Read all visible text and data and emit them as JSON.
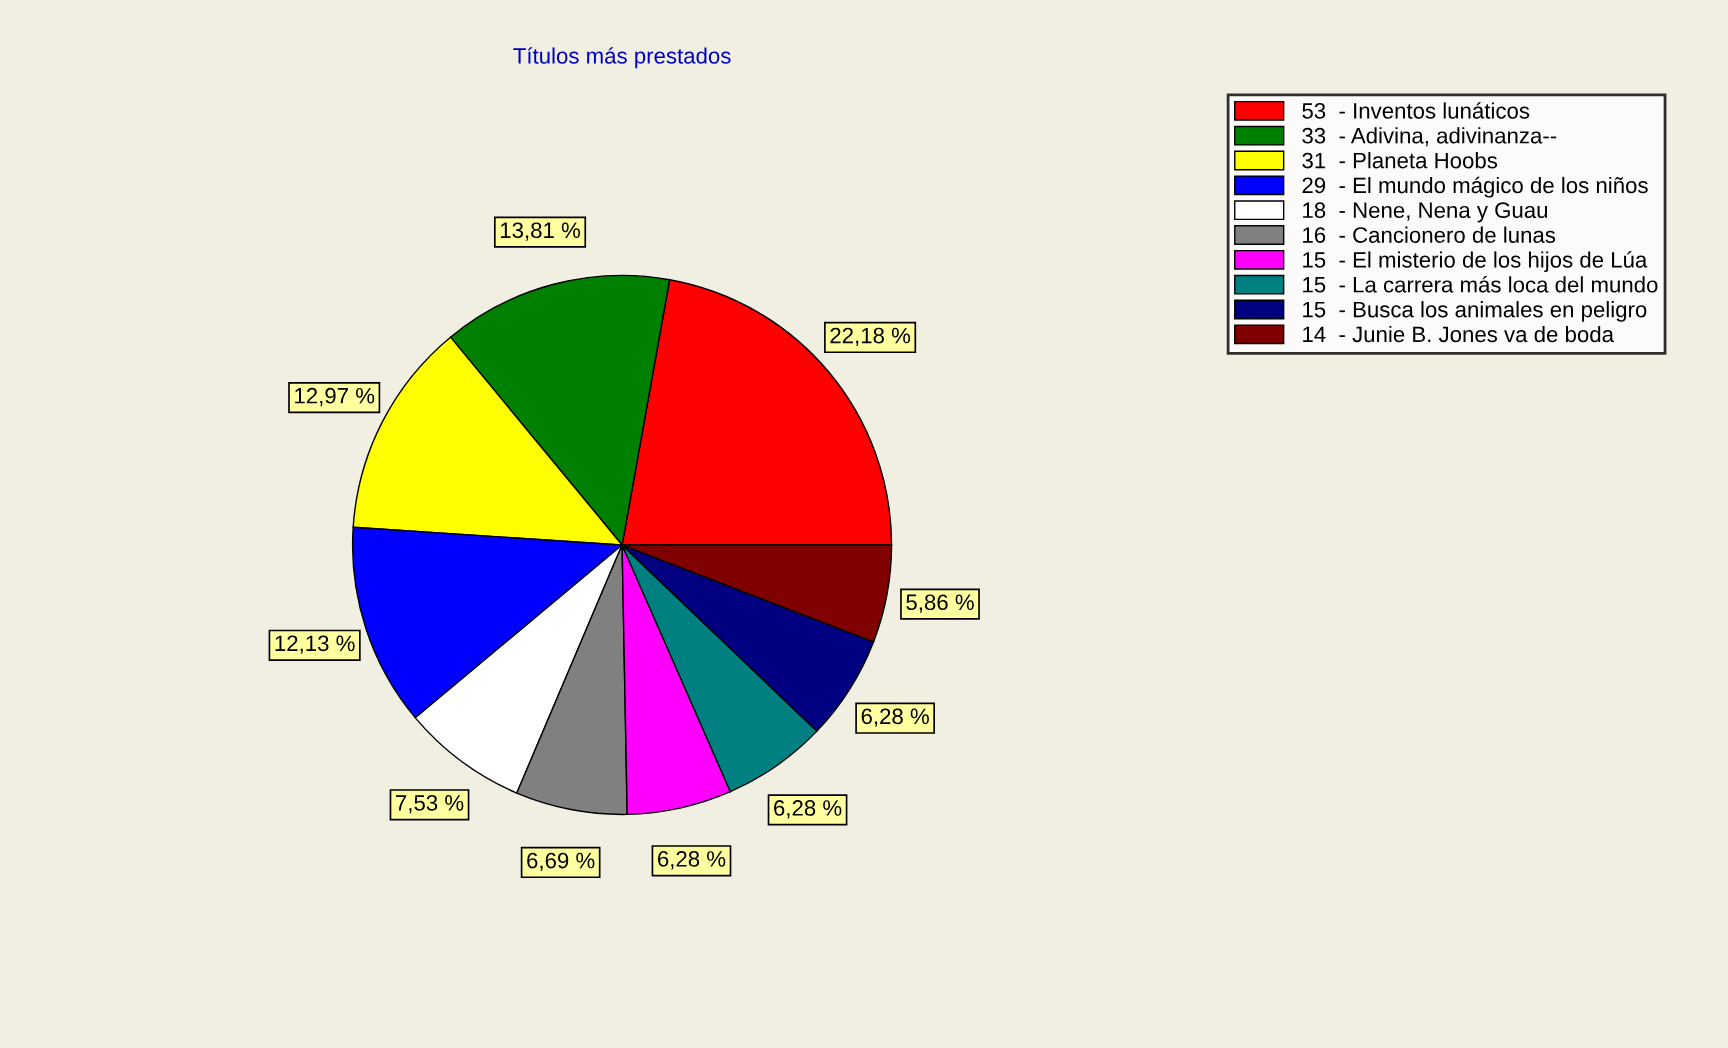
{
  "chart_data": {
    "type": "pie",
    "title": "Títulos más prestados",
    "categories": [
      "53  - Inventos lunáticos",
      "33  - Adivina, adivinanza--",
      "31  - Planeta Hoobs",
      "29  - El mundo mágico de los niños",
      "18  - Nene, Nena y Guau",
      "16  - Cancionero de lunas",
      "15  - El misterio de los hijos de Lúa",
      "15  - La carrera más loca del mundo",
      "15  - Busca los animales en peligro",
      "14  - Junie B. Jones va de boda"
    ],
    "values": [
      22.18,
      13.81,
      12.97,
      12.13,
      7.53,
      6.69,
      6.28,
      6.28,
      6.28,
      5.86
    ],
    "value_labels": [
      "22,18 %",
      "13,81 %",
      "12,97 %",
      "12,13 %",
      "7,53 %",
      "6,69 %",
      "6,28 %",
      "6,28 %",
      "6,28 %",
      "5,86 %"
    ],
    "colors": [
      "#ff0000",
      "#008000",
      "#ffff00",
      "#0000ff",
      "#ffffff",
      "#808080",
      "#ff00ff",
      "#008080",
      "#000080",
      "#800000"
    ],
    "legend": "top right"
  }
}
